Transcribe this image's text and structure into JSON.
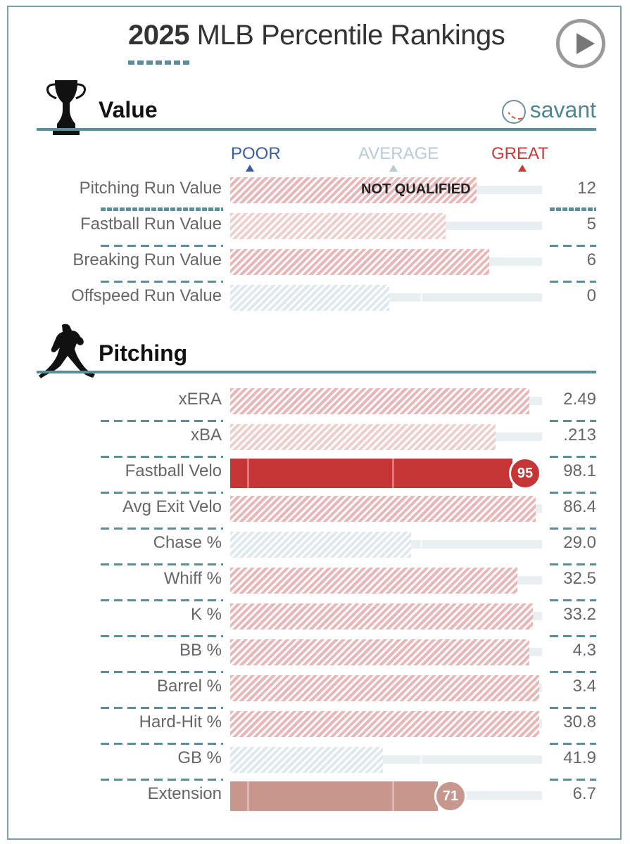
{
  "header": {
    "year": "2025",
    "title": "MLB Percentile Rankings",
    "play_icon": "play-circle-icon"
  },
  "brand": {
    "label": "savant",
    "icon": "baseball-icon"
  },
  "scale": {
    "poor": "POOR",
    "average": "AVERAGE",
    "great": "GREAT",
    "colors": {
      "poor": "#3a5f9e",
      "average": "#b8ccd0",
      "great": "#c53a3a"
    }
  },
  "sections": [
    {
      "title": "Value",
      "icon": "trophy-icon",
      "rows": [
        {
          "label": "Pitching Run Value",
          "value": "12",
          "percentile": 79,
          "style": "hatch-red",
          "note": "NOT QUALIFIED"
        },
        {
          "label": "Fastball Run Value",
          "value": "5",
          "percentile": 69,
          "style": "hatch-lred"
        },
        {
          "label": "Breaking Run Value",
          "value": "6",
          "percentile": 83,
          "style": "hatch-red"
        },
        {
          "label": "Offspeed Run Value",
          "value": "0",
          "percentile": 51,
          "style": "hatch-grey"
        }
      ]
    },
    {
      "title": "Pitching",
      "icon": "pitcher-icon",
      "rows": [
        {
          "label": "xERA",
          "value": "2.49",
          "percentile": 96,
          "style": "hatch-red"
        },
        {
          "label": "xBA",
          "value": ".213",
          "percentile": 85,
          "style": "hatch-lred"
        },
        {
          "label": "Fastball Velo",
          "value": "98.1",
          "percentile": 95,
          "style": "solid",
          "badge": "95",
          "color": "#c53535"
        },
        {
          "label": "Avg Exit Velo",
          "value": "86.4",
          "percentile": 98,
          "style": "hatch-red"
        },
        {
          "label": "Chase %",
          "value": "29.0",
          "percentile": 58,
          "style": "hatch-grey"
        },
        {
          "label": "Whiff %",
          "value": "32.5",
          "percentile": 92,
          "style": "hatch-red"
        },
        {
          "label": "K %",
          "value": "33.2",
          "percentile": 97,
          "style": "hatch-red"
        },
        {
          "label": "BB %",
          "value": "4.3",
          "percentile": 96,
          "style": "hatch-red"
        },
        {
          "label": "Barrel %",
          "value": "3.4",
          "percentile": 99,
          "style": "hatch-red"
        },
        {
          "label": "Hard-Hit %",
          "value": "30.8",
          "percentile": 99,
          "style": "hatch-red"
        },
        {
          "label": "GB %",
          "value": "41.9",
          "percentile": 49,
          "style": "hatch-grey"
        },
        {
          "label": "Extension",
          "value": "6.7",
          "percentile": 71,
          "style": "solid",
          "badge": "71",
          "color": "#c7968c"
        }
      ]
    }
  ]
}
